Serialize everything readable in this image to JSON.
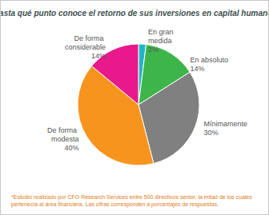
{
  "chart_data": {
    "type": "pie",
    "title": "¿Hasta qué punto conoce el retorno de sus inversiones en capital humano*?",
    "categories": [
      "En gran medida",
      "En absoluto",
      "Mínimamente",
      "De forma modesta",
      "De forma considerable"
    ],
    "values": [
      2,
      14,
      30,
      40,
      14
    ],
    "value_labels": [
      "2%",
      "14%",
      "30%",
      "40%",
      "14%"
    ],
    "colors": [
      "#1fb5c6",
      "#3db54a",
      "#808080",
      "#f7941d",
      "#e8198b"
    ],
    "data_labels": true,
    "footnote": "*Estudio realizado por CFO Research Services entre 500 directivos senior, la mitad de los cuales pertenecía al área financiera. Las cifras corresponden a porcentajes de respuestas."
  }
}
